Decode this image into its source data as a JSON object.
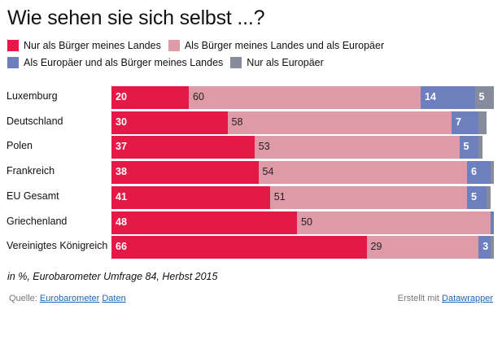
{
  "chart_data": {
    "type": "bar",
    "orientation": "horizontal",
    "stacked": true,
    "title": "Wie sehen sie sich selbst ...?",
    "note": "in %, Eurobarometer Umfrage 84, Herbst 2015",
    "xlabel": "",
    "ylabel": "",
    "xlim": [
      0,
      100
    ],
    "grid": false,
    "legend_position": "top",
    "categories": [
      "Luxemburg",
      "Deutschland",
      "Polen",
      "Frankreich",
      "EU Gesamt",
      "Griechenland",
      "Vereinigtes Königreich"
    ],
    "series": [
      {
        "name": "Nur als Bürger meines Landes",
        "color": "#e31a45",
        "label_color": "light",
        "values": [
          20,
          30,
          37,
          38,
          41,
          48,
          66
        ],
        "labels": [
          "20",
          "30",
          "37",
          "38",
          "41",
          "48",
          "66"
        ]
      },
      {
        "name": "Als Bürger meines Landes und als Europäer",
        "color": "#de9aa7",
        "label_color": "dark",
        "values": [
          60,
          58,
          53,
          54,
          51,
          50,
          29
        ],
        "labels": [
          "60",
          "58",
          "53",
          "54",
          "51",
          "50",
          "29"
        ]
      },
      {
        "name": "Als Europäer und als Bürger meines Landes",
        "color": "#6d7fbd",
        "label_color": "light",
        "values": [
          14,
          7,
          5,
          6,
          5,
          1,
          3
        ],
        "labels": [
          "14",
          "7",
          "5",
          "6",
          "5",
          "",
          "3"
        ]
      },
      {
        "name": "Nur als Europäer",
        "color": "#878c9c",
        "label_color": "light",
        "values": [
          5,
          2,
          1,
          1,
          1,
          0,
          1
        ],
        "labels": [
          "5",
          "",
          "",
          "",
          "",
          "",
          ""
        ]
      }
    ]
  },
  "footer": {
    "source_prefix": "Quelle:",
    "source_link1": "Eurobarometer",
    "source_link2": "Daten",
    "credit_prefix": "Erstellt mit",
    "credit_link": "Datawrapper"
  }
}
